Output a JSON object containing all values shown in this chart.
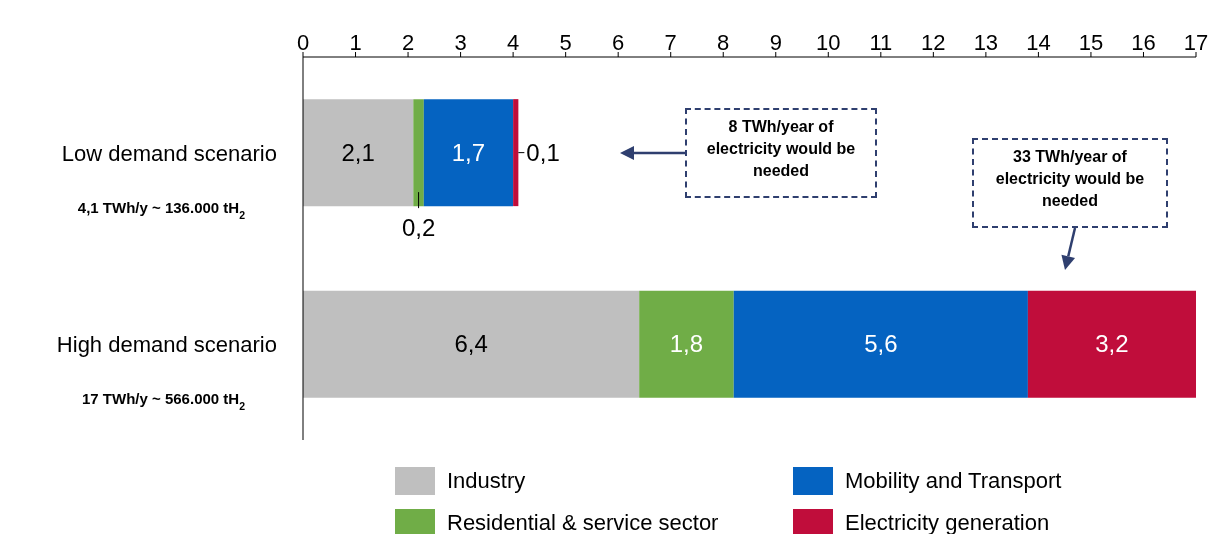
{
  "chart_data": {
    "type": "bar",
    "orientation": "horizontal",
    "stacked": true,
    "categories": [
      "Low demand scenario",
      "High demand scenario"
    ],
    "series": [
      {
        "name": "Industry",
        "color": "#bfbfbf",
        "values": [
          2.1,
          6.4
        ],
        "value_labels": [
          "2,1",
          "6,4"
        ]
      },
      {
        "name": "Residential & service sector",
        "color": "#70ad47",
        "values": [
          0.2,
          1.8
        ],
        "value_labels": [
          "0,2",
          "1,8"
        ]
      },
      {
        "name": "Mobility and Transport",
        "color": "#0563c1",
        "values": [
          1.7,
          5.6
        ],
        "value_labels": [
          "1,7",
          "5,6"
        ]
      },
      {
        "name": "Electricity generation",
        "color": "#c00d3b",
        "values": [
          0.1,
          3.2
        ],
        "value_labels": [
          "0,1",
          "3,2"
        ]
      }
    ],
    "xlim": [
      0,
      17
    ],
    "xticks": [
      0,
      1,
      2,
      3,
      4,
      5,
      6,
      7,
      8,
      9,
      10,
      11,
      12,
      13,
      14,
      15,
      16,
      17
    ],
    "legend": "bottom",
    "annotations": [
      "4,1 TWh/y ~ 136.000 tH$_{2}$",
      "17 TWh/y ~ 566.000 tH$_{2}$",
      "8 TWh/year of electricity would be needed",
      "33 TWh/year of electricity would be needed"
    ]
  }
}
